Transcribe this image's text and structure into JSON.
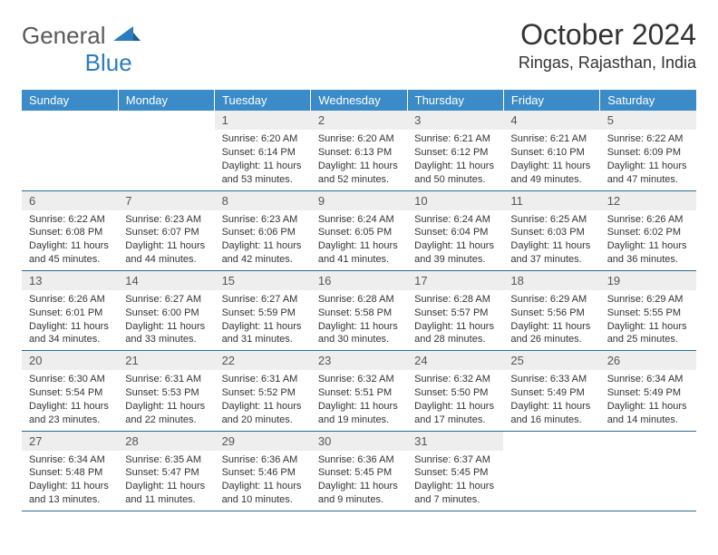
{
  "colors": {
    "header_bg": "#3b8bc8",
    "header_text": "#ffffff",
    "daynum_bg": "#eeeeee",
    "daynum_text": "#555555",
    "body_text": "#333333",
    "row_border": "#2b6a9e",
    "logo_gray": "#5a5a5a",
    "logo_blue": "#2b7bbf"
  },
  "logo": {
    "part1": "General",
    "part2": "Blue"
  },
  "title": "October 2024",
  "location": "Ringas, Rajasthan, India",
  "weekdays": [
    "Sunday",
    "Monday",
    "Tuesday",
    "Wednesday",
    "Thursday",
    "Friday",
    "Saturday"
  ],
  "fonts": {
    "title_size": 32,
    "location_size": 18,
    "weekday_size": 13,
    "daynum_size": 13,
    "cell_size": 11
  },
  "layout": {
    "cols": 7,
    "rows": 5,
    "first_weekday_index": 2,
    "days_in_month": 31
  },
  "days": [
    {
      "n": 1,
      "sunrise": "6:20 AM",
      "sunset": "6:14 PM",
      "daylight": "11 hours and 53 minutes."
    },
    {
      "n": 2,
      "sunrise": "6:20 AM",
      "sunset": "6:13 PM",
      "daylight": "11 hours and 52 minutes."
    },
    {
      "n": 3,
      "sunrise": "6:21 AM",
      "sunset": "6:12 PM",
      "daylight": "11 hours and 50 minutes."
    },
    {
      "n": 4,
      "sunrise": "6:21 AM",
      "sunset": "6:10 PM",
      "daylight": "11 hours and 49 minutes."
    },
    {
      "n": 5,
      "sunrise": "6:22 AM",
      "sunset": "6:09 PM",
      "daylight": "11 hours and 47 minutes."
    },
    {
      "n": 6,
      "sunrise": "6:22 AM",
      "sunset": "6:08 PM",
      "daylight": "11 hours and 45 minutes."
    },
    {
      "n": 7,
      "sunrise": "6:23 AM",
      "sunset": "6:07 PM",
      "daylight": "11 hours and 44 minutes."
    },
    {
      "n": 8,
      "sunrise": "6:23 AM",
      "sunset": "6:06 PM",
      "daylight": "11 hours and 42 minutes."
    },
    {
      "n": 9,
      "sunrise": "6:24 AM",
      "sunset": "6:05 PM",
      "daylight": "11 hours and 41 minutes."
    },
    {
      "n": 10,
      "sunrise": "6:24 AM",
      "sunset": "6:04 PM",
      "daylight": "11 hours and 39 minutes."
    },
    {
      "n": 11,
      "sunrise": "6:25 AM",
      "sunset": "6:03 PM",
      "daylight": "11 hours and 37 minutes."
    },
    {
      "n": 12,
      "sunrise": "6:26 AM",
      "sunset": "6:02 PM",
      "daylight": "11 hours and 36 minutes."
    },
    {
      "n": 13,
      "sunrise": "6:26 AM",
      "sunset": "6:01 PM",
      "daylight": "11 hours and 34 minutes."
    },
    {
      "n": 14,
      "sunrise": "6:27 AM",
      "sunset": "6:00 PM",
      "daylight": "11 hours and 33 minutes."
    },
    {
      "n": 15,
      "sunrise": "6:27 AM",
      "sunset": "5:59 PM",
      "daylight": "11 hours and 31 minutes."
    },
    {
      "n": 16,
      "sunrise": "6:28 AM",
      "sunset": "5:58 PM",
      "daylight": "11 hours and 30 minutes."
    },
    {
      "n": 17,
      "sunrise": "6:28 AM",
      "sunset": "5:57 PM",
      "daylight": "11 hours and 28 minutes."
    },
    {
      "n": 18,
      "sunrise": "6:29 AM",
      "sunset": "5:56 PM",
      "daylight": "11 hours and 26 minutes."
    },
    {
      "n": 19,
      "sunrise": "6:29 AM",
      "sunset": "5:55 PM",
      "daylight": "11 hours and 25 minutes."
    },
    {
      "n": 20,
      "sunrise": "6:30 AM",
      "sunset": "5:54 PM",
      "daylight": "11 hours and 23 minutes."
    },
    {
      "n": 21,
      "sunrise": "6:31 AM",
      "sunset": "5:53 PM",
      "daylight": "11 hours and 22 minutes."
    },
    {
      "n": 22,
      "sunrise": "6:31 AM",
      "sunset": "5:52 PM",
      "daylight": "11 hours and 20 minutes."
    },
    {
      "n": 23,
      "sunrise": "6:32 AM",
      "sunset": "5:51 PM",
      "daylight": "11 hours and 19 minutes."
    },
    {
      "n": 24,
      "sunrise": "6:32 AM",
      "sunset": "5:50 PM",
      "daylight": "11 hours and 17 minutes."
    },
    {
      "n": 25,
      "sunrise": "6:33 AM",
      "sunset": "5:49 PM",
      "daylight": "11 hours and 16 minutes."
    },
    {
      "n": 26,
      "sunrise": "6:34 AM",
      "sunset": "5:49 PM",
      "daylight": "11 hours and 14 minutes."
    },
    {
      "n": 27,
      "sunrise": "6:34 AM",
      "sunset": "5:48 PM",
      "daylight": "11 hours and 13 minutes."
    },
    {
      "n": 28,
      "sunrise": "6:35 AM",
      "sunset": "5:47 PM",
      "daylight": "11 hours and 11 minutes."
    },
    {
      "n": 29,
      "sunrise": "6:36 AM",
      "sunset": "5:46 PM",
      "daylight": "11 hours and 10 minutes."
    },
    {
      "n": 30,
      "sunrise": "6:36 AM",
      "sunset": "5:45 PM",
      "daylight": "11 hours and 9 minutes."
    },
    {
      "n": 31,
      "sunrise": "6:37 AM",
      "sunset": "5:45 PM",
      "daylight": "11 hours and 7 minutes."
    }
  ],
  "labels": {
    "sunrise": "Sunrise:",
    "sunset": "Sunset:",
    "daylight": "Daylight:"
  }
}
